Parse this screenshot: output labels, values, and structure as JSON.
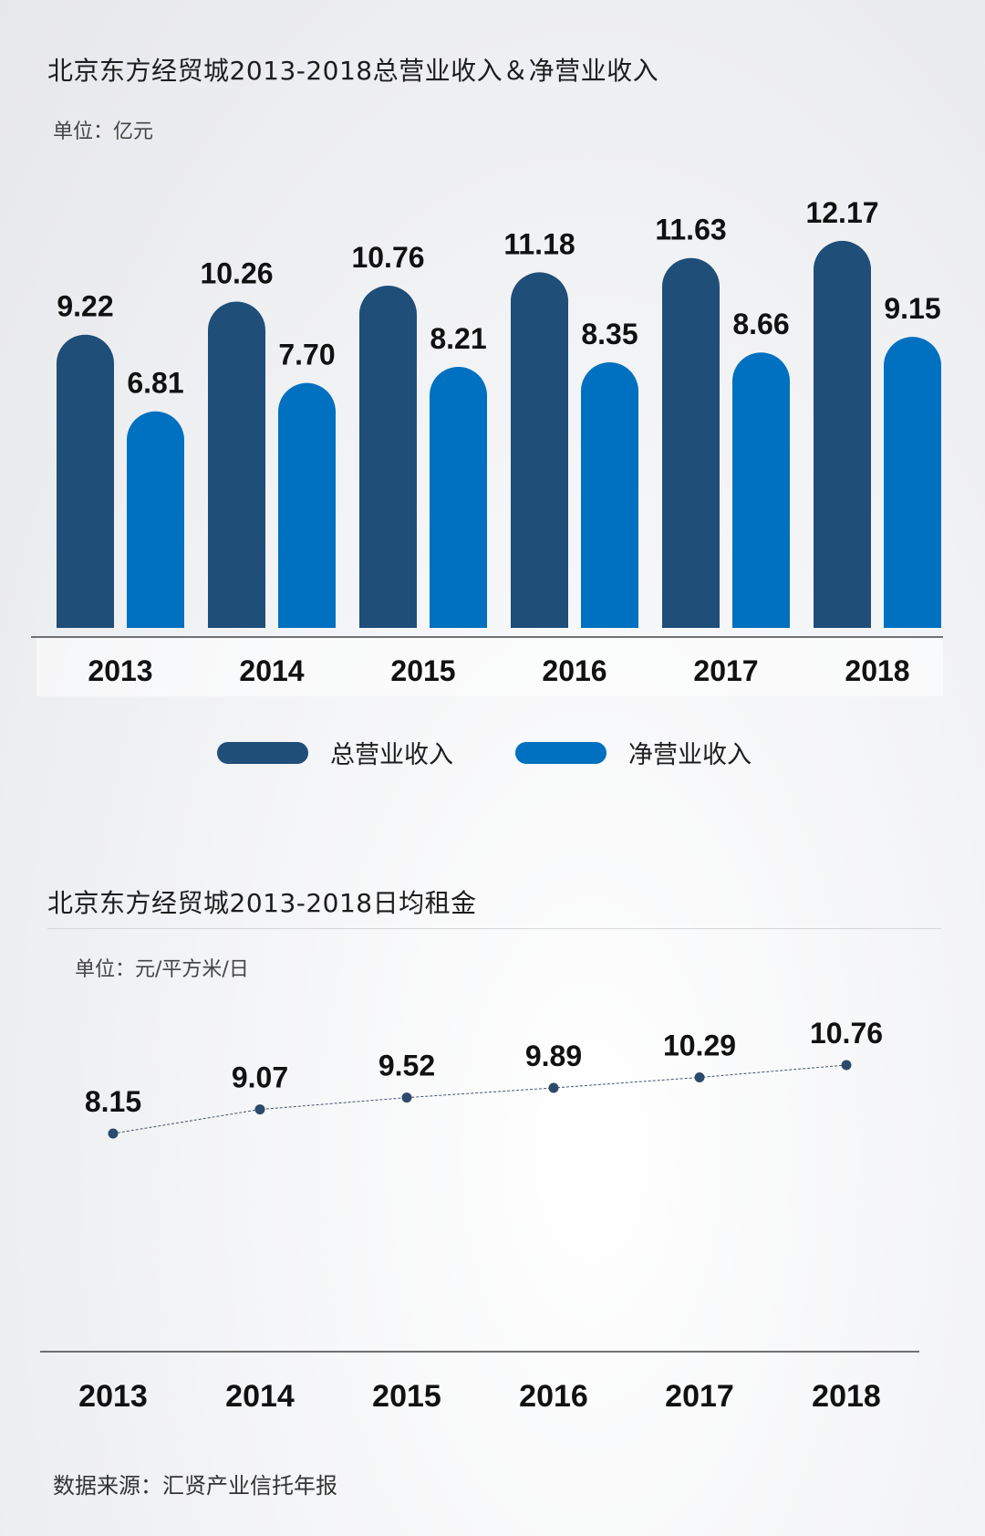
{
  "colors": {
    "total_revenue": "#1f4e79",
    "net_revenue": "#0070c0",
    "line": "#44546a",
    "text": "#1a1a1a"
  },
  "chart_data": [
    {
      "type": "bar",
      "title": "北京东方经贸城2013-2018总营业收入＆净营业收入",
      "unit_label": "单位：亿元",
      "categories": [
        "2013",
        "2014",
        "2015",
        "2016",
        "2017",
        "2018"
      ],
      "series": [
        {
          "name": "总营业收入",
          "color": "#1f4e79",
          "values": [
            9.22,
            10.26,
            10.76,
            11.18,
            11.63,
            12.17
          ],
          "labels": [
            "9.22",
            "10.26",
            "10.76",
            "11.18",
            "11.63",
            "12.17"
          ]
        },
        {
          "name": "净营业收入",
          "color": "#0070c0",
          "values": [
            6.81,
            7.7,
            8.21,
            8.35,
            8.66,
            9.15
          ],
          "labels": [
            "6.81",
            "7.70",
            "8.21",
            "8.35",
            "8.66",
            "9.15"
          ]
        }
      ],
      "ylim": [
        0,
        13
      ],
      "legend": "bottom-center",
      "grid": false
    },
    {
      "type": "line",
      "title": "北京东方经贸城2013-2018日均租金",
      "unit_label": "单位：元/平方米/日",
      "categories": [
        "2013",
        "2014",
        "2015",
        "2016",
        "2017",
        "2018"
      ],
      "series": [
        {
          "color": "#44546a",
          "values": [
            8.15,
            9.07,
            9.52,
            9.89,
            10.29,
            10.76
          ],
          "labels": [
            "8.15",
            "9.07",
            "9.52",
            "9.89",
            "10.29",
            "10.76"
          ]
        }
      ],
      "grid": false
    }
  ],
  "source": "数据来源：汇贤产业信托年报"
}
